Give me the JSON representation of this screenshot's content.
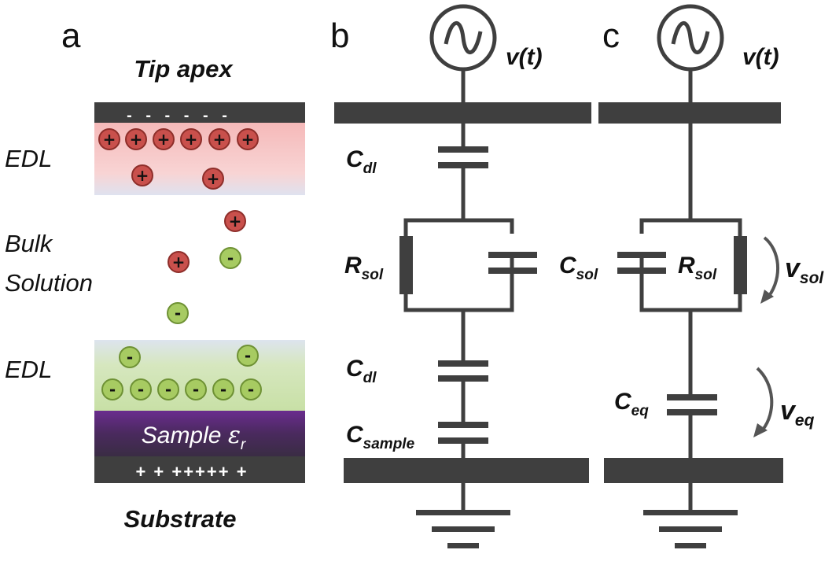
{
  "panels": {
    "a": {
      "letter": "a",
      "tip_label": "Tip apex",
      "edl_top_label": "EDL",
      "bulk_label_line1": "Bulk",
      "bulk_label_line2": "Solution",
      "edl_bottom_label": "EDL",
      "sample_label": "Sample ",
      "sample_symbol": "ε",
      "sample_subscript": "r",
      "substrate_label": "Substrate",
      "tip_charges": "- - - - - -",
      "substrate_charges": "+ + +++++ +",
      "positive_ion_symbol": "+",
      "negative_ion_symbol": "-"
    },
    "b": {
      "letter": "b",
      "source_label": "v(t)",
      "c_dl_top": {
        "main": "C",
        "sub": "dl"
      },
      "r_sol": {
        "main": "R",
        "sub": "sol"
      },
      "c_dl_bottom": {
        "main": "C",
        "sub": "dl"
      },
      "c_sample": {
        "main": "C",
        "sub": "sample"
      }
    },
    "c": {
      "letter": "c",
      "source_label": "v(t)",
      "c_sol": {
        "main": "C",
        "sub": "sol"
      },
      "r_sol": {
        "main": "R",
        "sub": "sol"
      },
      "v_sol": {
        "main": "v",
        "sub": "sol"
      },
      "c_eq": {
        "main": "C",
        "sub": "eq"
      },
      "v_eq": {
        "main": "v",
        "sub": "eq"
      }
    }
  },
  "colors": {
    "dark": "#3f3f3f",
    "positive_ion": "#c9504c",
    "negative_ion": "#a7cb62",
    "edl_top": "#f6c7c7",
    "edl_bottom": "#d3e6b8",
    "sample": "#4b2a68"
  }
}
